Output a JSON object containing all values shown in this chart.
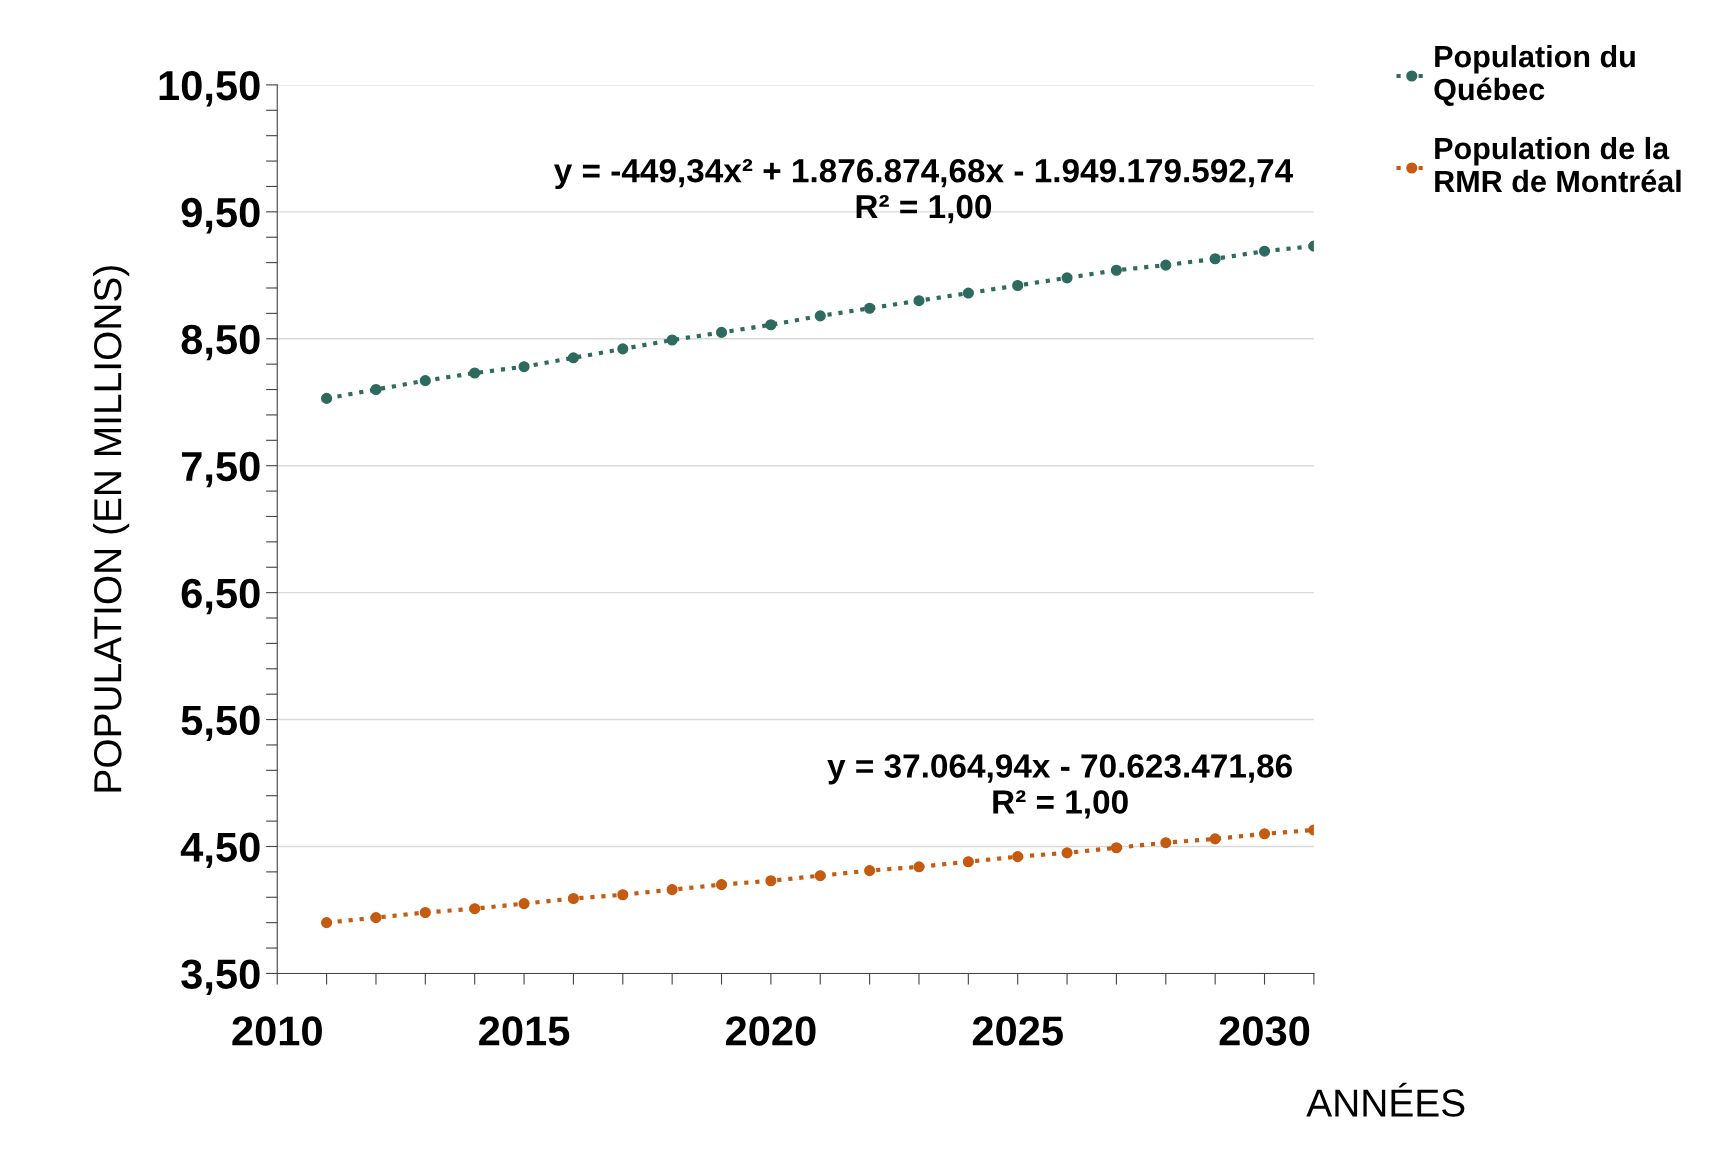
{
  "chart_data": {
    "type": "line",
    "ylabel": "POPULATION (EN MILLIONS)",
    "xlabel": "ANNÉES",
    "x": [
      2011,
      2012,
      2013,
      2014,
      2015,
      2016,
      2017,
      2018,
      2019,
      2020,
      2021,
      2022,
      2023,
      2024,
      2025,
      2026,
      2027,
      2028,
      2029,
      2030,
      2031
    ],
    "series": [
      {
        "name": "Population du\nQuébec",
        "color": "#2e6b5e",
        "values": [
          8.03,
          8.1,
          8.17,
          8.23,
          8.28,
          8.35,
          8.42,
          8.49,
          8.55,
          8.61,
          8.68,
          8.74,
          8.8,
          8.86,
          8.92,
          8.98,
          9.04,
          9.08,
          9.13,
          9.19,
          9.23
        ]
      },
      {
        "name": "Population de la\nRMR de Montréal",
        "color": "#c55a11",
        "values": [
          3.9,
          3.94,
          3.98,
          4.01,
          4.05,
          4.09,
          4.12,
          4.16,
          4.2,
          4.23,
          4.27,
          4.31,
          4.34,
          4.38,
          4.42,
          4.45,
          4.49,
          4.53,
          4.56,
          4.6,
          4.63
        ]
      }
    ],
    "annotations": [
      "y = -449,34x² + 1.876.874,68x - 1.949.179.592,74\nR² = 1,00",
      "y = 37.064,94x - 70.623.471,86\nR² = 1,00"
    ],
    "xlim": [
      2010,
      2031
    ],
    "ylim": [
      3.5,
      10.5
    ],
    "xticks": [
      {
        "value": 2010,
        "label": "2010"
      },
      {
        "value": 2011,
        "label": null
      },
      {
        "value": 2012,
        "label": null
      },
      {
        "value": 2013,
        "label": null
      },
      {
        "value": 2014,
        "label": null
      },
      {
        "value": 2015,
        "label": "2015"
      },
      {
        "value": 2016,
        "label": null
      },
      {
        "value": 2017,
        "label": null
      },
      {
        "value": 2018,
        "label": null
      },
      {
        "value": 2019,
        "label": null
      },
      {
        "value": 2020,
        "label": "2020"
      },
      {
        "value": 2021,
        "label": null
      },
      {
        "value": 2022,
        "label": null
      },
      {
        "value": 2023,
        "label": null
      },
      {
        "value": 2024,
        "label": null
      },
      {
        "value": 2025,
        "label": "2025"
      },
      {
        "value": 2026,
        "label": null
      },
      {
        "value": 2027,
        "label": null
      },
      {
        "value": 2028,
        "label": null
      },
      {
        "value": 2029,
        "label": null
      },
      {
        "value": 2030,
        "label": "2030"
      },
      {
        "value": 2031,
        "label": null
      }
    ],
    "yticks": [
      {
        "value": 3.5,
        "label": "3,50"
      },
      {
        "value": 3.7,
        "label": null
      },
      {
        "value": 3.9,
        "label": null
      },
      {
        "value": 4.1,
        "label": null
      },
      {
        "value": 4.3,
        "label": null
      },
      {
        "value": 4.5,
        "label": "4,50"
      },
      {
        "value": 4.7,
        "label": null
      },
      {
        "value": 4.9,
        "label": null
      },
      {
        "value": 5.1,
        "label": null
      },
      {
        "value": 5.3,
        "label": null
      },
      {
        "value": 5.5,
        "label": "5,50"
      },
      {
        "value": 5.7,
        "label": null
      },
      {
        "value": 5.9,
        "label": null
      },
      {
        "value": 6.1,
        "label": null
      },
      {
        "value": 6.3,
        "label": null
      },
      {
        "value": 6.5,
        "label": "6,50"
      },
      {
        "value": 6.7,
        "label": null
      },
      {
        "value": 6.9,
        "label": null
      },
      {
        "value": 7.1,
        "label": null
      },
      {
        "value": 7.3,
        "label": null
      },
      {
        "value": 7.5,
        "label": "7,50"
      },
      {
        "value": 7.7,
        "label": null
      },
      {
        "value": 7.9,
        "label": null
      },
      {
        "value": 8.1,
        "label": null
      },
      {
        "value": 8.3,
        "label": null
      },
      {
        "value": 8.5,
        "label": "8,50"
      },
      {
        "value": 8.7,
        "label": null
      },
      {
        "value": 8.9,
        "label": null
      },
      {
        "value": 9.1,
        "label": null
      },
      {
        "value": 9.3,
        "label": null
      },
      {
        "value": 9.5,
        "label": "9,50"
      },
      {
        "value": 9.7,
        "label": null
      },
      {
        "value": 9.9,
        "label": null
      },
      {
        "value": 10.1,
        "label": null
      },
      {
        "value": 10.3,
        "label": null
      },
      {
        "value": 10.5,
        "label": "10,50"
      }
    ],
    "grid": "y",
    "legend": "top right",
    "marker": "circle",
    "line_style": "dotted"
  }
}
